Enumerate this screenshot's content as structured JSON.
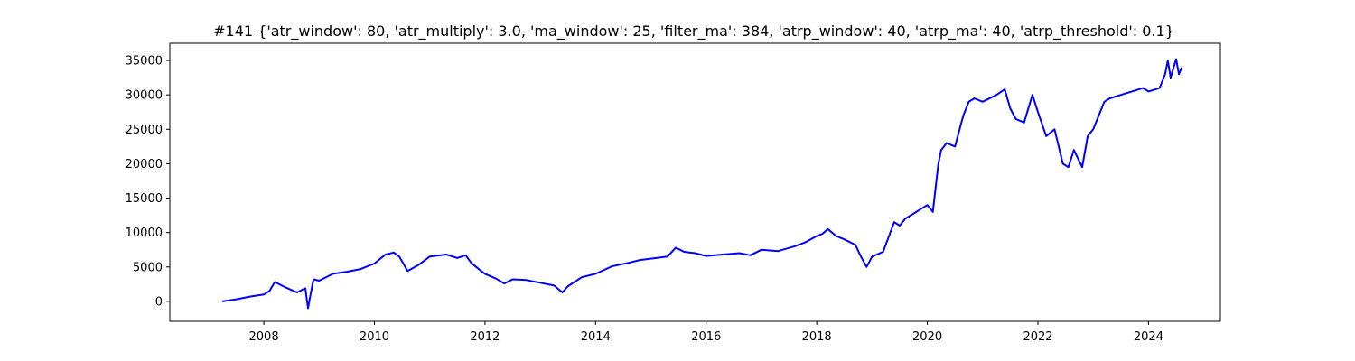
{
  "chart_data": {
    "type": "line",
    "title": "#141 {'atr_window': 80, 'atr_multiply': 3.0, 'ma_window': 25, 'filter_ma': 384, 'atrp_window': 40, 'atrp_ma': 40, 'atrp_threshold': 0.1}",
    "xlabel": "",
    "ylabel": "",
    "xlim": [
      2006.3,
      2025.3
    ],
    "ylim": [
      -2900,
      37500
    ],
    "x_ticks": [
      2008,
      2010,
      2012,
      2014,
      2016,
      2018,
      2020,
      2022,
      2024
    ],
    "x_tick_labels": [
      "2008",
      "2010",
      "2012",
      "2014",
      "2016",
      "2018",
      "2020",
      "2022",
      "2024"
    ],
    "y_ticks": [
      0,
      5000,
      10000,
      15000,
      20000,
      25000,
      30000,
      35000
    ],
    "y_tick_labels": [
      "0",
      "5000",
      "10000",
      "15000",
      "20000",
      "25000",
      "30000",
      "35000"
    ],
    "grid": false,
    "series": [
      {
        "color": "#0000ff",
        "x": [
          2007.25,
          2007.5,
          2007.75,
          2008.0,
          2008.1,
          2008.2,
          2008.4,
          2008.6,
          2008.75,
          2008.8,
          2008.85,
          2008.9,
          2009.0,
          2009.25,
          2009.5,
          2009.75,
          2010.0,
          2010.2,
          2010.35,
          2010.45,
          2010.6,
          2010.8,
          2011.0,
          2011.3,
          2011.5,
          2011.65,
          2011.75,
          2011.9,
          2012.0,
          2012.2,
          2012.35,
          2012.5,
          2012.75,
          2013.0,
          2013.25,
          2013.4,
          2013.5,
          2013.75,
          2014.0,
          2014.3,
          2014.6,
          2014.8,
          2015.0,
          2015.3,
          2015.45,
          2015.6,
          2015.8,
          2016.0,
          2016.3,
          2016.6,
          2016.8,
          2017.0,
          2017.3,
          2017.6,
          2017.8,
          2018.0,
          2018.1,
          2018.2,
          2018.35,
          2018.5,
          2018.7,
          2018.8,
          2018.9,
          2019.0,
          2019.2,
          2019.4,
          2019.5,
          2019.6,
          2019.8,
          2020.0,
          2020.1,
          2020.2,
          2020.25,
          2020.35,
          2020.5,
          2020.65,
          2020.75,
          2020.85,
          2021.0,
          2021.25,
          2021.4,
          2021.5,
          2021.6,
          2021.75,
          2021.9,
          2022.0,
          2022.15,
          2022.3,
          2022.45,
          2022.55,
          2022.65,
          2022.8,
          2022.9,
          2023.0,
          2023.2,
          2023.3,
          2023.5,
          2023.7,
          2023.9,
          2024.0,
          2024.2,
          2024.3,
          2024.35,
          2024.4,
          2024.5,
          2024.55,
          2024.6
        ],
        "values": [
          0,
          300,
          700,
          1000,
          1500,
          2800,
          2000,
          1300,
          1900,
          -1000,
          1200,
          3200,
          3000,
          4000,
          4300,
          4700,
          5500,
          6800,
          7100,
          6500,
          4400,
          5300,
          6500,
          6800,
          6300,
          6700,
          5600,
          4600,
          4000,
          3300,
          2600,
          3200,
          3100,
          2700,
          2300,
          1300,
          2200,
          3500,
          4000,
          5100,
          5600,
          6000,
          6200,
          6500,
          7800,
          7200,
          7000,
          6600,
          6800,
          7000,
          6700,
          7500,
          7300,
          8000,
          8600,
          9500,
          9800,
          10500,
          9500,
          9000,
          8200,
          6500,
          5000,
          6500,
          7200,
          11500,
          11000,
          12000,
          13000,
          14000,
          13000,
          20000,
          22000,
          23000,
          22500,
          27000,
          29000,
          29500,
          29000,
          30000,
          30800,
          28000,
          26500,
          26000,
          30000,
          27500,
          24000,
          25000,
          20000,
          19500,
          22000,
          19500,
          24000,
          25000,
          29000,
          29500,
          30000,
          30500,
          31000,
          30500,
          31000,
          33000,
          35000,
          32500,
          35200,
          33000,
          34000
        ]
      }
    ]
  }
}
